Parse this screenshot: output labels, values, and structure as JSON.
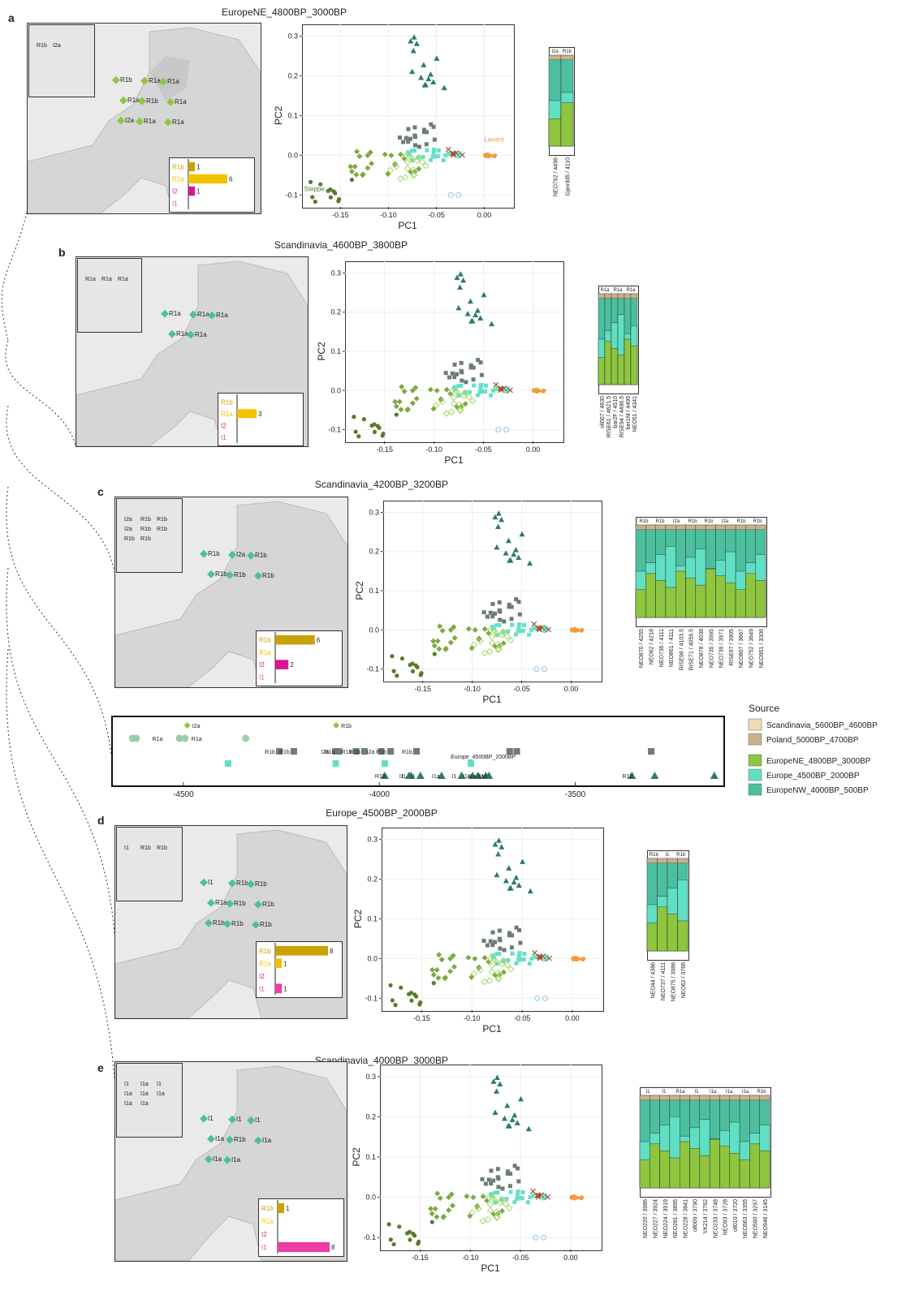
{
  "colors": {
    "land": "#d9d9d9",
    "sea": "#ffffff",
    "r1b": "#c9a100",
    "r1a": "#f2c200",
    "i2": "#d6168f",
    "i1": "#ef3ba6",
    "steppe_green": "#5a7a2a",
    "levant_orange": "#f39a3d",
    "dark_teal": "#2e7d5a",
    "gray_sq": "#6c7d73",
    "cyan": "#66e0c8",
    "lightgreen": "#a5d86a",
    "scandi_5600": "#f1dcb2",
    "poland_5000": "#c9b28a",
    "europene_4800": "#8ec63f",
    "europe_4500": "#5fe0c4",
    "europenw_4000": "#4cbf9e"
  },
  "panels": [
    {
      "letter": "a",
      "title": "EuropeNE_4800BP_3000BP",
      "map_labels": [
        "R1b",
        "R1a",
        "R1a",
        "R1a",
        "R1b",
        "R1a",
        "I2a",
        "R1a",
        "R1a"
      ],
      "inset_labels": [
        "R1b",
        "I2a"
      ],
      "haplo_bars": [
        {
          "label": "R1b",
          "value": 1
        },
        {
          "label": "R1a",
          "value": 6
        },
        {
          "label": "I2",
          "value": 1
        },
        {
          "label": "I1",
          "value": 0
        }
      ],
      "pca_annotations": [
        "Steppe",
        "Levant"
      ],
      "admix_top_labels": [
        "I2a",
        "R1b"
      ],
      "admix_samples": [
        "NEO792 / 4496",
        "Gjerrild5 / 4110"
      ]
    },
    {
      "letter": "b",
      "title": "Scandinavia_4600BP_3800BP",
      "map_labels": [
        "R1a",
        "R1a",
        "R1a",
        "R1a",
        "R1a"
      ],
      "inset_labels": [
        "R1a",
        "R1a",
        "R1a"
      ],
      "haplo_bars": [
        {
          "label": "R1b",
          "value": 0
        },
        {
          "label": "R1a",
          "value": 3
        },
        {
          "label": "I2",
          "value": 0
        },
        {
          "label": "I1",
          "value": 0
        }
      ],
      "admix_top_labels": [
        "R1a",
        "R1a",
        "R1a"
      ],
      "admix_samples": [
        "oll007 / 4630",
        "RISE61 / 4621.5",
        "bar2F / 4510",
        "RISE94 / 4496.5",
        "ber1M / 4495",
        "NEO51 / 4341"
      ]
    },
    {
      "letter": "c",
      "title": "Scandinavia_4200BP_3200BP",
      "map_labels": [
        "R1b",
        "I2a",
        "R1b",
        "R1b",
        "R1b",
        "R1b"
      ],
      "inset_labels": [
        "I2a",
        "R1b",
        "R1b",
        "I2a",
        "R1b",
        "R1b",
        "R1b",
        "R1b"
      ],
      "haplo_bars": [
        {
          "label": "R1b",
          "value": 6
        },
        {
          "label": "R1a",
          "value": 0
        },
        {
          "label": "I2",
          "value": 2
        },
        {
          "label": "I1",
          "value": 0
        }
      ],
      "admix_top_labels": [
        "R1b",
        "R1b",
        "I2a",
        "R1b",
        "R1b",
        "I2a",
        "R1b",
        "R1b"
      ],
      "admix_samples": [
        "NEO870 / 4255",
        "NEO62 / 4218",
        "NEO736 / 4111",
        "NEO861 / 4111",
        "RISE98 / 4103.5",
        "RISE71 / 4059.5",
        "NEO878 / 4038",
        "NEO735 / 3995",
        "NEO739 / 3971",
        "RISE97 / 3905",
        "NEO807 / 3667",
        "NEO752 / 3649",
        "NEO951 / 3306"
      ]
    },
    {
      "letter": "d",
      "title": "Europe_4500BP_2000BP",
      "map_labels": [
        "I1",
        "R1b",
        "R1b",
        "R1a",
        "R1b",
        "R1b",
        "R1b",
        "R1b",
        "R1b"
      ],
      "inset_labels": [
        "I1",
        "R1b",
        "R1b"
      ],
      "haplo_bars": [
        {
          "label": "R1b",
          "value": 8
        },
        {
          "label": "R1a",
          "value": 1
        },
        {
          "label": "I2",
          "value": 0
        },
        {
          "label": "I1",
          "value": 1
        }
      ],
      "admix_top_labels": [
        "R1b",
        "I1",
        "R1b"
      ],
      "admix_samples": [
        "NEO44 / 4386",
        "NEO737 / 4111",
        "NEO875 / 3986",
        "NEO62 / 3766"
      ]
    },
    {
      "letter": "e",
      "title": "Scandinavia_4000BP_3000BP",
      "map_labels": [
        "I1",
        "I1",
        "I1",
        "I1a",
        "R1b",
        "I1a",
        "I1a",
        "I1a"
      ],
      "inset_labels": [
        "I1",
        "I1a",
        "I1",
        "I1a",
        "I1a",
        "I1a",
        "I1a",
        "I1a"
      ],
      "haplo_bars": [
        {
          "label": "R1b",
          "value": 1
        },
        {
          "label": "R1a",
          "value": 0
        },
        {
          "label": "I2",
          "value": 0
        },
        {
          "label": "I1",
          "value": 8
        }
      ],
      "admix_top_labels": [
        "I1",
        "I1",
        "R1a",
        "I1",
        "I1a",
        "I1a",
        "I1a",
        "R1b"
      ],
      "admix_samples": [
        "NEO220 / 3986",
        "NEO227 / 3924",
        "NEO224 / 3919",
        "NEO281 / 3895",
        "NEO228 / 3841",
        "oll009 / 3790",
        "VK214 / 3762",
        "NEO233 / 3748",
        "NEO93 / 3728",
        "oll010 / 3720",
        "NEO563 / 3355",
        "NEO590 / 3297",
        "NEO946 / 3145"
      ]
    }
  ],
  "pca_axes": {
    "xlabel": "PC1",
    "ylabel": "PC2",
    "x_ticks": [
      "-0.15",
      "-0.10",
      "-0.05",
      "0.00"
    ],
    "y_ticks": [
      "-0.1",
      "0.0",
      "0.1",
      "0.2",
      "0.3"
    ]
  },
  "timeline": {
    "ticks": [
      "-4500",
      "-4000",
      "-3500"
    ],
    "annotation": "Europe_4500BP_2000BP",
    "labels_top": [
      "I2a",
      "R1b"
    ],
    "labels_row2": [
      "R1a",
      "R1a",
      "R1b",
      "R1b",
      "I2a",
      "R1b",
      "R1b",
      "R1b",
      "I2a",
      "R1b",
      "R1b"
    ],
    "labels_row3": [
      "R1b",
      "I1",
      "I1",
      "I1",
      "I1a",
      "I1",
      "I1a",
      "I1a",
      "I1a",
      "I1a",
      "R1b"
    ]
  },
  "legend": {
    "title": "Source",
    "items": [
      {
        "label": "Scandinavia_5600BP_4600BP",
        "color": "#f1dcb2"
      },
      {
        "label": "Poland_5000BP_4700BP",
        "color": "#c9b28a"
      },
      {
        "label": "EuropeNE_4800BP_3000BP",
        "color": "#8ec63f"
      },
      {
        "label": "Europe_4500BP_2000BP",
        "color": "#5fe0c4"
      },
      {
        "label": "EuropeNW_4000BP_500BP",
        "color": "#4cbf9e"
      }
    ]
  },
  "chart_data": [
    {
      "type": "bar",
      "title": "EuropeNE_4800BP_3000BP",
      "categories": [
        "R1b",
        "R1a",
        "I2",
        "I1"
      ],
      "values": [
        1,
        6,
        1,
        0
      ]
    },
    {
      "type": "bar",
      "title": "Scandinavia_4600BP_3800BP",
      "categories": [
        "R1b",
        "R1a",
        "I2",
        "I1"
      ],
      "values": [
        0,
        3,
        0,
        0
      ]
    },
    {
      "type": "bar",
      "title": "Scandinavia_4200BP_3200BP",
      "categories": [
        "R1b",
        "R1a",
        "I2",
        "I1"
      ],
      "values": [
        6,
        0,
        2,
        0
      ]
    },
    {
      "type": "bar",
      "title": "Europe_4500BP_2000BP",
      "categories": [
        "R1b",
        "R1a",
        "I2",
        "I1"
      ],
      "values": [
        8,
        1,
        0,
        1
      ]
    },
    {
      "type": "bar",
      "title": "Scandinavia_4000BP_3000BP",
      "categories": [
        "R1b",
        "R1a",
        "I2",
        "I1"
      ],
      "values": [
        1,
        0,
        0,
        8
      ]
    },
    {
      "type": "scatter",
      "xlabel": "PC1",
      "ylabel": "PC2",
      "xlim": [
        -0.19,
        0.03
      ],
      "ylim": [
        -0.13,
        0.33
      ],
      "series": [
        {
          "name": "Steppe",
          "points": [
            [
              -0.18,
              -0.12
            ],
            [
              -0.17,
              -0.11
            ],
            [
              -0.16,
              -0.1
            ],
            [
              -0.15,
              -0.08
            ],
            [
              -0.14,
              -0.09
            ],
            [
              -0.16,
              -0.07
            ],
            [
              -0.13,
              -0.06
            ],
            [
              -0.15,
              -0.05
            ]
          ]
        },
        {
          "name": "Levant",
          "points": [
            [
              0.0,
              0.0
            ],
            [
              0.005,
              0.003
            ],
            [
              0.01,
              -0.002
            ],
            [
              0.008,
              0.004
            ],
            [
              -0.002,
              0.001
            ],
            [
              0.012,
              0.0
            ]
          ]
        }
      ]
    }
  ]
}
